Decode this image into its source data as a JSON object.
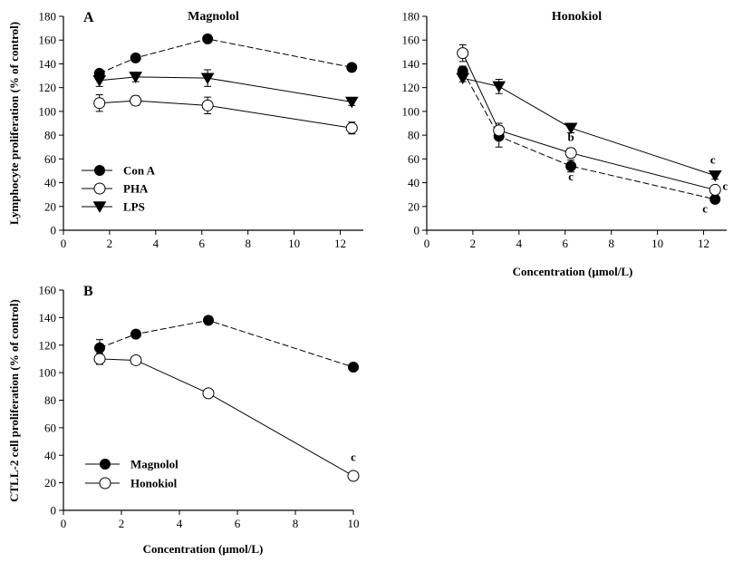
{
  "chart_data": [
    {
      "type": "line",
      "panel": "A",
      "title": "Magnolol",
      "xlabel": "",
      "ylabel": "Lymphocyte proliferation (% of control)",
      "xlim": [
        0,
        13
      ],
      "ylim": [
        0,
        180
      ],
      "xticks": [
        0,
        2,
        4,
        6,
        8,
        10,
        12
      ],
      "yticks": [
        0,
        20,
        40,
        60,
        80,
        100,
        120,
        140,
        160,
        180
      ],
      "x": [
        1.56,
        3.13,
        6.25,
        12.5
      ],
      "series": [
        {
          "name": "Con A",
          "marker": "filled-circle",
          "values": [
            132,
            145,
            161,
            137
          ],
          "err": [
            3,
            2,
            3,
            3
          ]
        },
        {
          "name": "PHA",
          "marker": "open-circle",
          "values": [
            107,
            109,
            105,
            86
          ],
          "err": [
            7,
            4,
            7,
            5
          ]
        },
        {
          "name": "LPS",
          "marker": "filled-triangle",
          "values": [
            126,
            129,
            128,
            108
          ],
          "err": [
            5,
            4,
            7,
            3
          ]
        }
      ],
      "legend": {
        "position": "bottom-left",
        "entries": [
          "Con A",
          "PHA",
          "LPS"
        ]
      },
      "annotations": []
    },
    {
      "type": "line",
      "panel": "",
      "title": "Honokiol",
      "xlabel": "Concentration (µmol/L)",
      "ylabel": "",
      "xlim": [
        0,
        13
      ],
      "ylim": [
        0,
        180
      ],
      "xticks": [
        0,
        2,
        4,
        6,
        8,
        10,
        12
      ],
      "yticks": [
        0,
        20,
        40,
        60,
        80,
        100,
        120,
        140,
        160,
        180
      ],
      "x": [
        1.56,
        3.13,
        6.25,
        12.5
      ],
      "series": [
        {
          "name": "Con A",
          "marker": "filled-circle",
          "values": [
            134,
            79,
            54,
            26
          ],
          "err": [
            4,
            9,
            5,
            3
          ]
        },
        {
          "name": "PHA",
          "marker": "open-circle",
          "values": [
            149,
            84,
            65,
            34
          ],
          "err": [
            7,
            6,
            4,
            3
          ]
        },
        {
          "name": "LPS",
          "marker": "filled-triangle",
          "values": [
            128,
            121,
            86,
            46
          ],
          "err": [
            3,
            6,
            4,
            3
          ]
        }
      ],
      "annotations": [
        {
          "text": "b",
          "x": 6.25,
          "y": 75
        },
        {
          "text": "c",
          "x": 6.25,
          "y": 42
        },
        {
          "text": "c",
          "x": 12.4,
          "y": 56
        },
        {
          "text": "c",
          "x": 12.7,
          "y": 34
        },
        {
          "text": "c",
          "x": 12.3,
          "y": 15
        }
      ]
    },
    {
      "type": "line",
      "panel": "B",
      "title": "",
      "xlabel": "Concentration (µmol/L)",
      "ylabel": "CTLL-2 cell proliferation (% of control)",
      "xlim": [
        0,
        10
      ],
      "ylim": [
        0,
        160
      ],
      "xticks": [
        0,
        2,
        4,
        6,
        8,
        10
      ],
      "yticks": [
        0,
        20,
        40,
        60,
        80,
        100,
        120,
        140,
        160
      ],
      "x": [
        1.25,
        2.5,
        5,
        10
      ],
      "series": [
        {
          "name": "Magnolol",
          "marker": "filled-circle",
          "values": [
            118,
            128,
            138,
            104
          ],
          "err": [
            6,
            2,
            2,
            2
          ]
        },
        {
          "name": "Honokiol",
          "marker": "open-circle",
          "values": [
            110,
            109,
            85,
            25
          ],
          "err": [
            4,
            2,
            2,
            2
          ]
        }
      ],
      "legend": {
        "position": "bottom-left",
        "entries": [
          "Magnolol",
          "Honokiol"
        ]
      },
      "annotations": [
        {
          "text": "c",
          "x": 10,
          "y": 36
        }
      ]
    }
  ]
}
